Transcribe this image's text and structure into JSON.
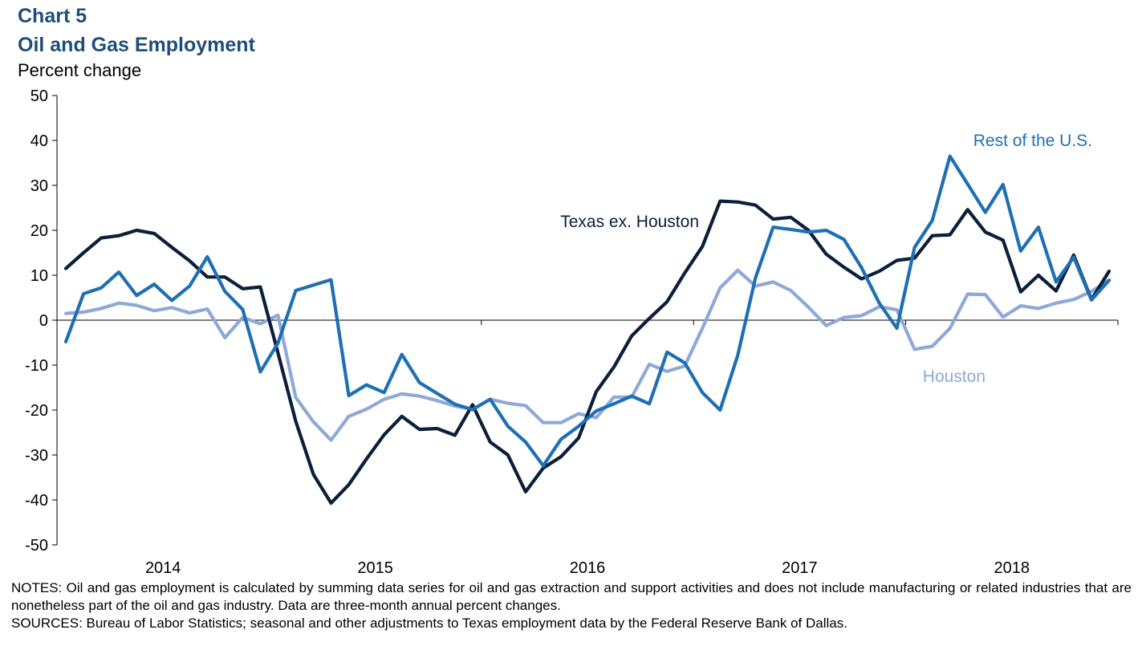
{
  "header": {
    "chart_number": "Chart 5",
    "title": "Oil and Gas Employment",
    "y_unit": "Percent change"
  },
  "notes": {
    "notes_text": "NOTES: Oil and gas employment is calculated by summing data series for oil and gas extraction and support activities and does not include manufacturing or related industries that are nonetheless part of the oil and gas industry. Data are three-month annual percent changes.",
    "sources_text": "SOURCES: Bureau of Labor Statistics; seasonal and other adjustments to Texas employment data by the Federal Reserve Bank of Dallas."
  },
  "chart_data": {
    "type": "line",
    "title": "Oil and Gas Employment",
    "ylabel": "Percent change",
    "xlabel": "",
    "ylim": [
      -50,
      50
    ],
    "yticks": [
      50,
      40,
      30,
      20,
      10,
      0,
      -10,
      -20,
      -30,
      -40,
      -50
    ],
    "x_start": "2014-01",
    "x_end": "2018-09",
    "x_tick_labels": [
      "2014",
      "2015",
      "2016",
      "2017",
      "2018"
    ],
    "grid": false,
    "legend": "inline labels",
    "series": [
      {
        "name": "Texas ex. Houston",
        "color": "#0b1f3a",
        "values": [
          11.5,
          15,
          18.3,
          18.8,
          20,
          19.3,
          16.2,
          13.2,
          9.6,
          9.6,
          7,
          7.4,
          -7.3,
          -22.5,
          -34.3,
          -40.7,
          -36.6,
          -30.9,
          -25.5,
          -21.4,
          -24.3,
          -24.1,
          -25.6,
          -18.8,
          -27.1,
          -30,
          -38.2,
          -32.9,
          -30.4,
          -26.2,
          -15.9,
          -10.4,
          -3.5,
          0.4,
          4.1,
          10.5,
          16.4,
          26.5,
          26.3,
          25.6,
          22.5,
          22.9,
          20,
          14.7,
          11.8,
          9.2,
          10.9,
          13.3,
          13.8,
          18.8,
          19,
          24.6,
          19.6,
          17.8,
          6.3,
          10,
          6.5,
          14.5,
          4.6,
          10.9
        ]
      },
      {
        "name": "Rest of the U.S.",
        "color": "#1f6fb4",
        "values": [
          -4.8,
          5.9,
          7.2,
          10.7,
          5.5,
          8,
          4.4,
          7.6,
          14.1,
          6.4,
          2.4,
          -11.5,
          -5.1,
          6.6,
          7.8,
          9,
          -16.8,
          -14.4,
          -16.1,
          -7.6,
          -13.9,
          -16.3,
          -18.7,
          -19.9,
          -17.6,
          -23.6,
          -27.1,
          -32.4,
          -26.5,
          -23.6,
          -20.2,
          -18.6,
          -16.9,
          -18.6,
          -7.1,
          -9.5,
          -16.1,
          -20,
          -7.8,
          9.4,
          20.7,
          20.2,
          19.6,
          20,
          18,
          11.7,
          3.8,
          -1.8,
          16.2,
          22.2,
          36.5,
          30.3,
          24,
          30.2,
          15.4,
          20.7,
          8.5,
          14,
          4.5,
          8.9
        ]
      },
      {
        "name": "Houston",
        "color": "#8ea9d9",
        "values": [
          1.5,
          1.8,
          2.6,
          3.8,
          3.3,
          2.1,
          2.8,
          1.6,
          2.5,
          -3.9,
          0.6,
          -0.8,
          1.1,
          -17.2,
          -22.6,
          -26.7,
          -21.4,
          -19.8,
          -17.6,
          -16.4,
          -16.9,
          -17.9,
          -19.1,
          -19.8,
          -17.6,
          -18.5,
          -19,
          -22.8,
          -22.8,
          -20.8,
          -21.7,
          -17.1,
          -17.1,
          -9.8,
          -11.4,
          -10.2,
          -1.8,
          7.2,
          11.1,
          7.6,
          8.5,
          6.6,
          2.9,
          -1.2,
          0.6,
          1,
          3,
          2.3,
          -6.5,
          -5.8,
          -1.8,
          5.8,
          5.7,
          0.7,
          3.2,
          2.6,
          3.8,
          4.6,
          6.4,
          8.9
        ]
      }
    ],
    "annotations": [
      {
        "text": "Texas ex. Houston",
        "series": 0,
        "anchor_value": 22
      },
      {
        "text": "Rest of the U.S.",
        "series": 1,
        "anchor_value": 40
      },
      {
        "text": "Houston",
        "series": 2,
        "anchor_value": -12.5
      }
    ]
  }
}
